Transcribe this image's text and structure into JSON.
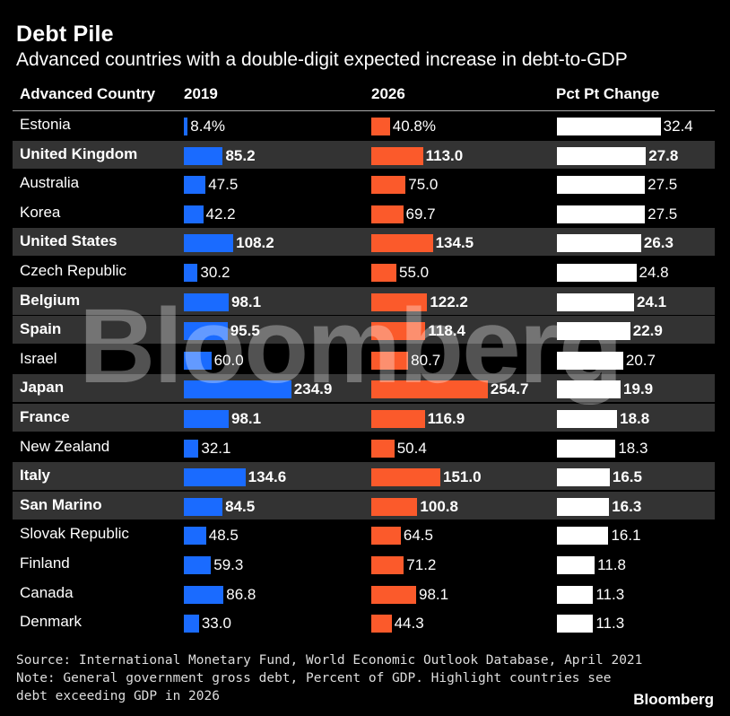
{
  "chart_data": {
    "type": "table",
    "title": "Debt Pile",
    "subtitle": "Advanced countries with a double-digit expected increase in debt-to-GDP",
    "columns": [
      "Advanced Country",
      "2019",
      "2026",
      "Pct Pt Change"
    ],
    "rows": [
      {
        "country": "Estonia",
        "v2019": 8.4,
        "l2019": "8.4%",
        "v2026": 40.8,
        "l2026": "40.8%",
        "change": 32.4,
        "lchange": "32.4",
        "highlight": false
      },
      {
        "country": "United Kingdom",
        "v2019": 85.2,
        "l2019": "85.2",
        "v2026": 113.0,
        "l2026": "113.0",
        "change": 27.8,
        "lchange": "27.8",
        "highlight": true
      },
      {
        "country": "Australia",
        "v2019": 47.5,
        "l2019": "47.5",
        "v2026": 75.0,
        "l2026": "75.0",
        "change": 27.5,
        "lchange": "27.5",
        "highlight": false
      },
      {
        "country": "Korea",
        "v2019": 42.2,
        "l2019": "42.2",
        "v2026": 69.7,
        "l2026": "69.7",
        "change": 27.5,
        "lchange": "27.5",
        "highlight": false
      },
      {
        "country": "United States",
        "v2019": 108.2,
        "l2019": "108.2",
        "v2026": 134.5,
        "l2026": "134.5",
        "change": 26.3,
        "lchange": "26.3",
        "highlight": true
      },
      {
        "country": "Czech Republic",
        "v2019": 30.2,
        "l2019": "30.2",
        "v2026": 55.0,
        "l2026": "55.0",
        "change": 24.8,
        "lchange": "24.8",
        "highlight": false
      },
      {
        "country": "Belgium",
        "v2019": 98.1,
        "l2019": "98.1",
        "v2026": 122.2,
        "l2026": "122.2",
        "change": 24.1,
        "lchange": "24.1",
        "highlight": true
      },
      {
        "country": "Spain",
        "v2019": 95.5,
        "l2019": "95.5",
        "v2026": 118.4,
        "l2026": "118.4",
        "change": 22.9,
        "lchange": "22.9",
        "highlight": true
      },
      {
        "country": "Israel",
        "v2019": 60.0,
        "l2019": "60.0",
        "v2026": 80.7,
        "l2026": "80.7",
        "change": 20.7,
        "lchange": "20.7",
        "highlight": false
      },
      {
        "country": "Japan",
        "v2019": 234.9,
        "l2019": "234.9",
        "v2026": 254.7,
        "l2026": "254.7",
        "change": 19.9,
        "lchange": "19.9",
        "highlight": true
      },
      {
        "country": "France",
        "v2019": 98.1,
        "l2019": "98.1",
        "v2026": 116.9,
        "l2026": "116.9",
        "change": 18.8,
        "lchange": "18.8",
        "highlight": true
      },
      {
        "country": "New Zealand",
        "v2019": 32.1,
        "l2019": "32.1",
        "v2026": 50.4,
        "l2026": "50.4",
        "change": 18.3,
        "lchange": "18.3",
        "highlight": false
      },
      {
        "country": "Italy",
        "v2019": 134.6,
        "l2019": "134.6",
        "v2026": 151.0,
        "l2026": "151.0",
        "change": 16.5,
        "lchange": "16.5",
        "highlight": true
      },
      {
        "country": "San Marino",
        "v2019": 84.5,
        "l2019": "84.5",
        "v2026": 100.8,
        "l2026": "100.8",
        "change": 16.3,
        "lchange": "16.3",
        "highlight": true
      },
      {
        "country": "Slovak Republic",
        "v2019": 48.5,
        "l2019": "48.5",
        "v2026": 64.5,
        "l2026": "64.5",
        "change": 16.1,
        "lchange": "16.1",
        "highlight": false
      },
      {
        "country": "Finland",
        "v2019": 59.3,
        "l2019": "59.3",
        "v2026": 71.2,
        "l2026": "71.2",
        "change": 11.8,
        "lchange": "11.8",
        "highlight": false
      },
      {
        "country": "Canada",
        "v2019": 86.8,
        "l2019": "86.8",
        "v2026": 98.1,
        "l2026": "98.1",
        "change": 11.3,
        "lchange": "11.3",
        "highlight": false
      },
      {
        "country": "Denmark",
        "v2019": 33.0,
        "l2019": "33.0",
        "v2026": 44.3,
        "l2026": "44.3",
        "change": 11.3,
        "lchange": "11.3",
        "highlight": false
      }
    ],
    "colors": {
      "c2019": "#1a6bff",
      "c2026": "#fb5a2b",
      "change": "#ffffff",
      "highlight_row": "#333333"
    }
  },
  "source": {
    "line1": "Source: International Monetary Fund, World Economic Outlook Database, April 2021",
    "line2": "Note: General government gross debt, Percent of GDP. Highlight countries see",
    "line3": "debt exceeding GDP in 2026"
  },
  "watermark": "Bloomberg",
  "logo": "Bloomberg"
}
